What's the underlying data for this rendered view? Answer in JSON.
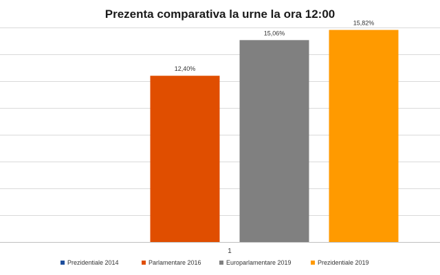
{
  "chart_data": {
    "type": "bar",
    "title": "Prezenta comparativa la urne la ora 12:00",
    "categories": [
      "1"
    ],
    "series": [
      {
        "name": "Prezidentiale 2014",
        "values": [
          0
        ],
        "color": "#1f4e9c"
      },
      {
        "name": "Parlamentare 2016",
        "values": [
          12.4
        ],
        "label": "12,40%",
        "color": "#e04e00"
      },
      {
        "name": "Europarlamentare 2019",
        "values": [
          15.06
        ],
        "label": "15,06%",
        "color": "#808080"
      },
      {
        "name": "Prezidentiale 2019",
        "values": [
          15.82
        ],
        "label": "15,82%",
        "color": "#ff9a00"
      }
    ],
    "ylim": [
      0,
      16
    ],
    "grid": true,
    "legend": "bottom"
  }
}
